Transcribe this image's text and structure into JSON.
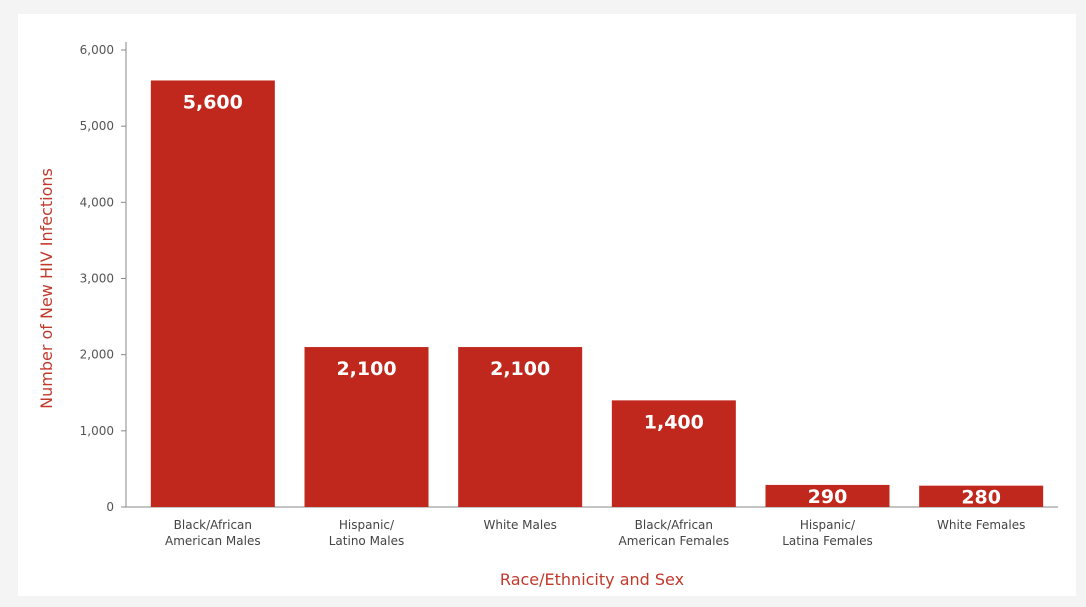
{
  "colors": {
    "bar": "#c0281d",
    "axis_title": "#c0392b",
    "axis_line": "#888888"
  },
  "chart_data": {
    "type": "bar",
    "title": "",
    "xlabel": "Race/Ethnicity and Sex",
    "ylabel": "Number of New HIV Infections",
    "ylim": [
      0,
      6000
    ],
    "yticks": [
      0,
      1000,
      2000,
      3000,
      4000,
      5000,
      6000
    ],
    "ytick_labels": [
      "0",
      "1,000",
      "2,000",
      "3,000",
      "4,000",
      "5,000",
      "6,000"
    ],
    "grid": false,
    "categories": [
      [
        "Black/African",
        "American Males"
      ],
      [
        "Hispanic/",
        "Latino Males"
      ],
      [
        "White Males"
      ],
      [
        "Black/African",
        "American Females"
      ],
      [
        "Hispanic/",
        "Latina Females"
      ],
      [
        "White Females"
      ]
    ],
    "values": [
      5600,
      2100,
      2100,
      1400,
      290,
      280
    ],
    "value_labels": [
      "5,600",
      "2,100",
      "2,100",
      "1,400",
      "290",
      "280"
    ]
  }
}
